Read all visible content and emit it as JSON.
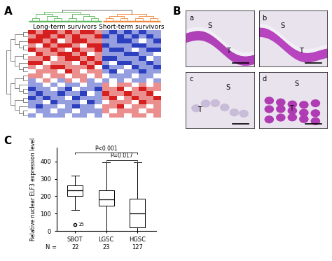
{
  "chart_data": [
    {
      "type": "heatmap",
      "label": "A",
      "groups": [
        {
          "name": "Long-term survivors",
          "color": "#5cb85c",
          "columns": 10
        },
        {
          "name": "Short-term survivors",
          "color": "#f0883e",
          "columns": 8
        }
      ],
      "color_range": [
        -2,
        2
      ],
      "cells": [
        [
          2,
          1,
          2,
          2,
          1,
          2,
          1,
          2,
          2,
          1,
          -1,
          -2,
          -1,
          -2,
          -1,
          -2,
          -1,
          -1
        ],
        [
          1,
          2,
          2,
          1,
          2,
          1,
          2,
          1,
          1,
          2,
          -2,
          -1,
          -2,
          -1,
          -2,
          -1,
          -2,
          -1
        ],
        [
          2,
          2,
          1,
          2,
          0,
          1,
          2,
          2,
          1,
          1,
          -1,
          -1,
          -2,
          -2,
          -1,
          0,
          -1,
          -2
        ],
        [
          1,
          0,
          2,
          1,
          2,
          2,
          1,
          0,
          2,
          2,
          -2,
          -1,
          -1,
          -1,
          -2,
          -2,
          -1,
          -1
        ],
        [
          2,
          1,
          1,
          2,
          1,
          0,
          2,
          1,
          1,
          2,
          -1,
          -2,
          -2,
          -1,
          0,
          -1,
          -2,
          -2
        ],
        [
          0,
          2,
          1,
          1,
          2,
          2,
          1,
          2,
          0,
          1,
          -1,
          -1,
          -1,
          -2,
          -2,
          -1,
          -1,
          0
        ],
        [
          1,
          1,
          2,
          0,
          1,
          2,
          2,
          1,
          2,
          1,
          -2,
          -2,
          -1,
          -1,
          -1,
          -2,
          0,
          -1
        ],
        [
          2,
          2,
          0,
          1,
          1,
          1,
          0,
          2,
          1,
          2,
          -1,
          0,
          -2,
          -2,
          -1,
          -1,
          -2,
          -1
        ],
        [
          1,
          0,
          1,
          2,
          2,
          1,
          1,
          1,
          2,
          0,
          -2,
          -1,
          -1,
          0,
          -2,
          -1,
          -1,
          -2
        ],
        [
          0,
          1,
          1,
          1,
          0,
          2,
          1,
          0,
          1,
          1,
          -1,
          -2,
          0,
          -1,
          -1,
          -2,
          -1,
          -1
        ],
        [
          1,
          1,
          0,
          1,
          1,
          0,
          1,
          1,
          0,
          1,
          0,
          -1,
          -1,
          -1,
          0,
          -1,
          -1,
          0
        ],
        [
          -1,
          0,
          1,
          0,
          -1,
          1,
          0,
          1,
          -1,
          0,
          -1,
          0,
          -1,
          0,
          -1,
          -1,
          0,
          -1
        ],
        [
          -1,
          -1,
          0,
          -1,
          0,
          -1,
          -1,
          0,
          -1,
          -1,
          1,
          0,
          1,
          1,
          0,
          1,
          0,
          1
        ],
        [
          -2,
          -1,
          -1,
          0,
          -1,
          -2,
          0,
          -1,
          -1,
          -2,
          1,
          1,
          2,
          0,
          1,
          2,
          1,
          1
        ],
        [
          -1,
          -2,
          -1,
          -1,
          -2,
          -1,
          -1,
          -2,
          0,
          -1,
          2,
          1,
          1,
          2,
          1,
          1,
          2,
          0
        ],
        [
          -2,
          -1,
          -2,
          -1,
          -1,
          0,
          -2,
          -1,
          -1,
          -1,
          1,
          2,
          0,
          1,
          2,
          1,
          1,
          2
        ],
        [
          -1,
          -1,
          0,
          -2,
          -1,
          -1,
          -1,
          0,
          -2,
          -1,
          0,
          1,
          1,
          1,
          0,
          2,
          1,
          1
        ],
        [
          -1,
          -2,
          -1,
          -1,
          0,
          -1,
          -2,
          -1,
          -1,
          0,
          1,
          1,
          2,
          0,
          1,
          1,
          0,
          1
        ],
        [
          0,
          -1,
          -1,
          0,
          -1,
          -1,
          0,
          -1,
          -1,
          -1,
          1,
          0,
          1,
          1,
          1,
          0,
          1,
          1
        ],
        [
          -1,
          0,
          -1,
          -1,
          -1,
          0,
          -1,
          -1,
          0,
          -1,
          0,
          1,
          1,
          0,
          1,
          1,
          0,
          1
        ]
      ]
    },
    {
      "type": "image_grid",
      "label": "B",
      "panels": [
        {
          "label": "a",
          "texts": [
            "S",
            "T"
          ],
          "color": "#b040b8"
        },
        {
          "label": "b",
          "texts": [
            "S",
            "T"
          ],
          "color": "#b844c0"
        },
        {
          "label": "c",
          "texts": [
            "S",
            "T"
          ],
          "color": "#c9bcd8"
        },
        {
          "label": "d",
          "texts": [
            "S",
            "T"
          ],
          "color": "#b03cb4"
        }
      ]
    },
    {
      "type": "box",
      "label": "C",
      "ylabel": "Relative nuclear ELF3 expression level",
      "categories": [
        "SBOT",
        "LGSC",
        "HGSC"
      ],
      "n_label": "N =",
      "n": [
        22,
        23,
        127
      ],
      "boxes": [
        {
          "whislo": 120,
          "q1": 200,
          "med": 235,
          "q3": 262,
          "whishi": 318,
          "outliers": [
            {
              "value": 35,
              "label": "15"
            }
          ]
        },
        {
          "whislo": 0,
          "q1": 145,
          "med": 180,
          "q3": 235,
          "whishi": 395,
          "outliers": []
        },
        {
          "whislo": 0,
          "q1": 20,
          "med": 100,
          "q3": 185,
          "whishi": 395,
          "outliers": []
        }
      ],
      "ylim": [
        0,
        480
      ],
      "yticks": [
        0,
        100,
        200,
        300,
        400
      ],
      "comparisons": [
        {
          "pair": [
            1,
            2
          ],
          "label": "P=0.017"
        },
        {
          "pair": [
            0,
            2
          ],
          "label": "P<0.001"
        }
      ]
    }
  ]
}
